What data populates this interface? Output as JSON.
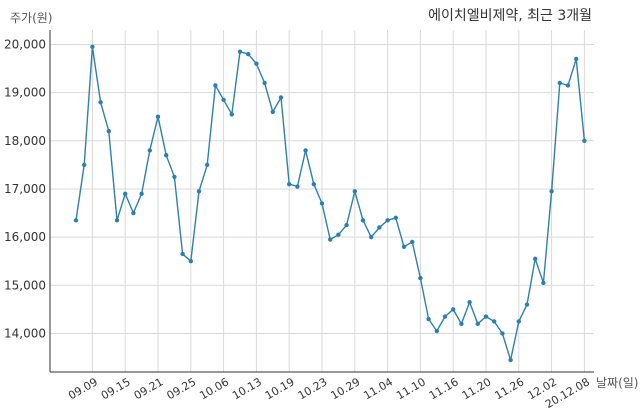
{
  "chart_data": {
    "type": "line",
    "title": "에이치엘비제약, 최근 3개월",
    "ylabel": "주가(원)",
    "xlabel": "날짜(일)",
    "ylim": [
      13200,
      20300
    ],
    "yticks": [
      14000,
      15000,
      16000,
      17000,
      18000,
      19000,
      20000
    ],
    "ytick_labels": [
      "14,000",
      "15,000",
      "16,000",
      "17,000",
      "18,000",
      "19,000",
      "20,000"
    ],
    "xtick_labels": [
      "09.09",
      "09.15",
      "09.21",
      "09.25",
      "10.06",
      "10.13",
      "10.19",
      "10.23",
      "10.29",
      "11.04",
      "11.10",
      "11.16",
      "11.20",
      "11.26",
      "12.02",
      "20.12.08"
    ],
    "xtick_indices": [
      2,
      6,
      10,
      14,
      18,
      22,
      26,
      30,
      34,
      38,
      42,
      46,
      50,
      54,
      58,
      62
    ],
    "grid": true,
    "line_color": "#2e7fb0",
    "values": [
      16350,
      17500,
      19950,
      18800,
      18200,
      16350,
      16900,
      16500,
      16900,
      17800,
      18500,
      17700,
      17250,
      15650,
      15500,
      16950,
      17500,
      19150,
      18850,
      18550,
      19850,
      19800,
      19600,
      19200,
      18600,
      18900,
      17100,
      17050,
      17800,
      17100,
      16700,
      15950,
      16050,
      16250,
      16950,
      16350,
      16000,
      16200,
      16350,
      16400,
      15800,
      15900,
      15150,
      14300,
      14050,
      14350,
      14500,
      14200,
      14650,
      14200,
      14350,
      14250,
      14000,
      13450,
      14250,
      14600,
      15550,
      15050,
      16950,
      19200,
      19150,
      19700,
      18000
    ]
  }
}
